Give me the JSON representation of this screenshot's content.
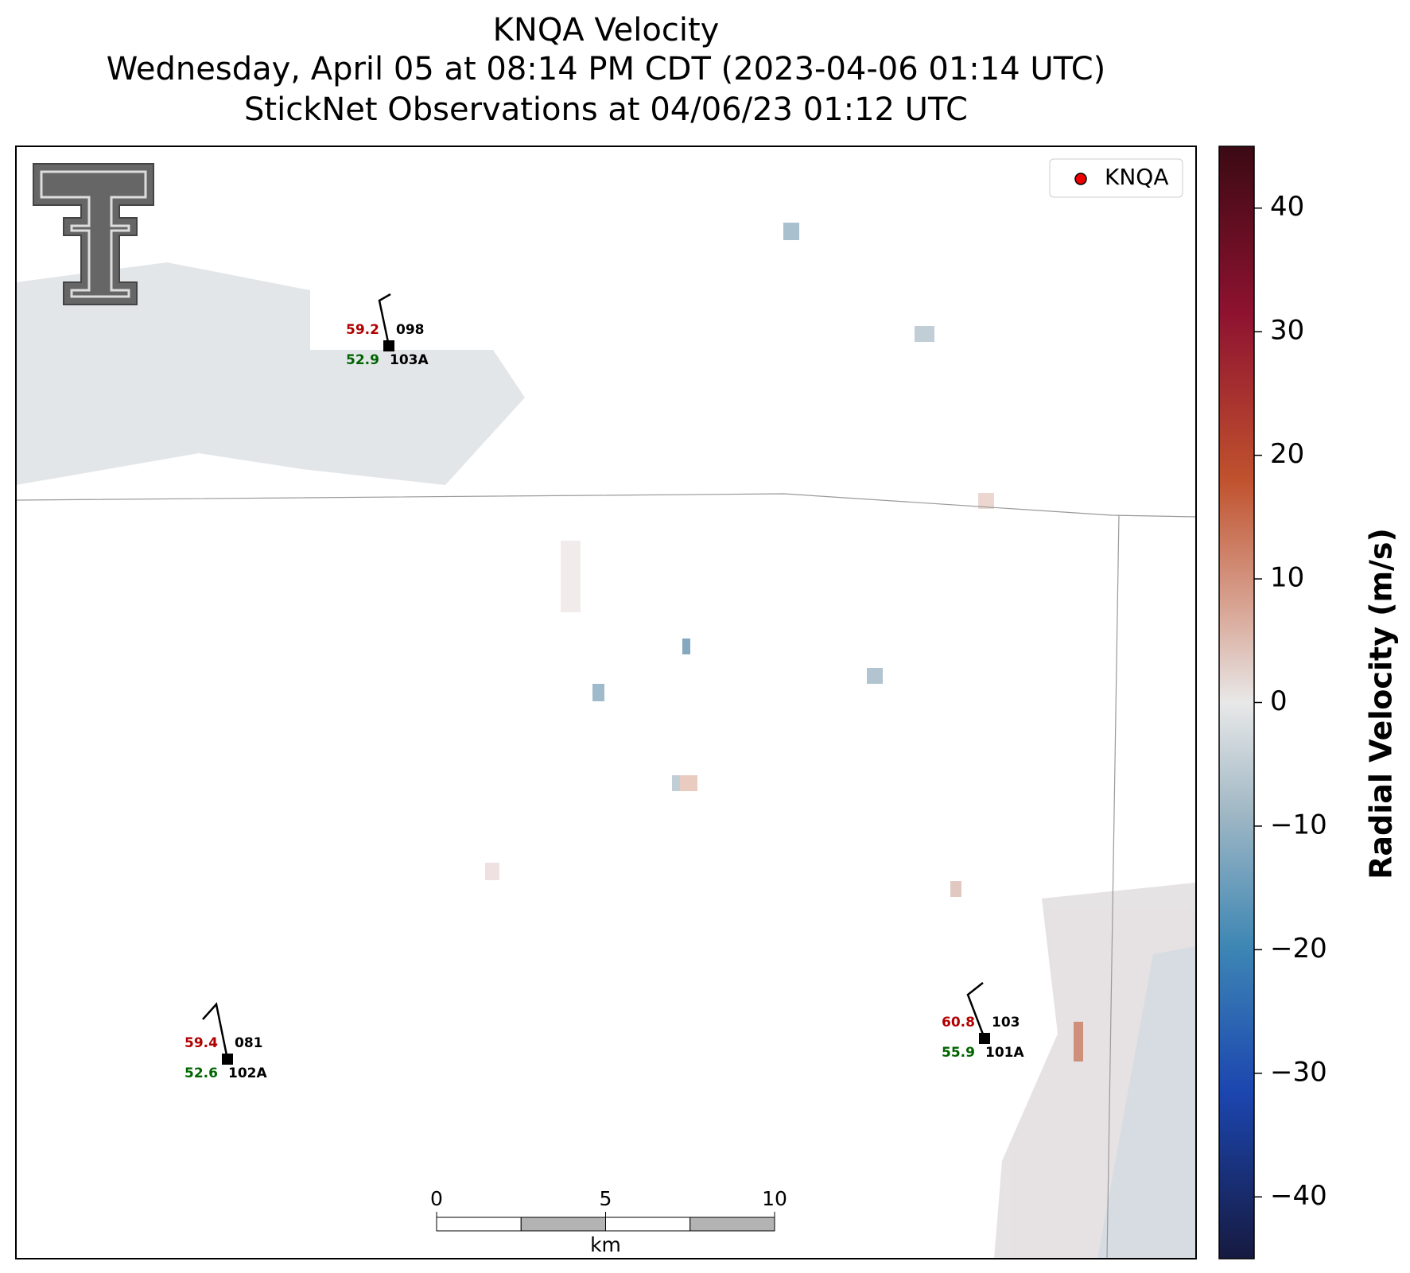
{
  "header": {
    "title": "KNQA Velocity",
    "subtitle": "Wednesday, April 05 at 08:14 PM CDT (2023-04-06 01:14 UTC)",
    "subtitle2": "StickNet Observations at 04/06/23 01:12 UTC"
  },
  "legend": {
    "label": "KNQA"
  },
  "stations": [
    {
      "temperature": 59.2,
      "dewpoint": 52.9,
      "id": "098",
      "probe": "103A"
    },
    {
      "temperature": 59.4,
      "dewpoint": 52.6,
      "id": "081",
      "probe": "102A"
    },
    {
      "temperature": 60.8,
      "dewpoint": 55.9,
      "id": "103",
      "probe": "101A"
    }
  ],
  "colorbar": {
    "label": "Radial Velocity (m/s)",
    "lim": [
      -45,
      45
    ],
    "ticks": [
      {
        "value": -40,
        "label": "−40"
      },
      {
        "value": -30,
        "label": "−30"
      },
      {
        "value": -20,
        "label": "−20"
      },
      {
        "value": -10,
        "label": "−10"
      },
      0,
      10,
      20,
      30,
      40
    ]
  },
  "scalebar": {
    "ticks": [
      0,
      5,
      10
    ],
    "unit": "km"
  }
}
